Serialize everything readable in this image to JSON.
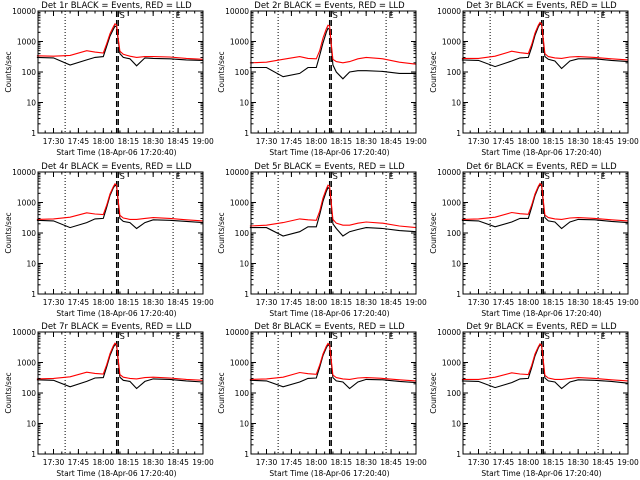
{
  "chart_data": {
    "type": "line",
    "xlabel": "Start Time (18-Apr-06 17:20:40)",
    "ylabel": "Counts/sec",
    "x_tick_labels": [
      "17:30",
      "17:45",
      "18:00",
      "18:15",
      "18:30",
      "18:45",
      "19:00"
    ],
    "y_tick_labels": [
      "1",
      "10",
      "100",
      "1000",
      "10000"
    ],
    "y_scale": "log",
    "ylim": [
      1,
      10000
    ],
    "xlim": [
      "17:20:40",
      "19:00"
    ],
    "grid": false,
    "colors": {
      "events": "#000000",
      "lld": "#ff0000",
      "frame": "#000000"
    },
    "vertical_markers": {
      "dotted": [
        "17:37",
        "18:42",
        "19:00"
      ],
      "dashed": [
        "18:08",
        "18:09"
      ]
    },
    "time_grid": [
      "17:20",
      "17:30",
      "17:40",
      "17:50",
      "17:55",
      "18:00",
      "18:02",
      "18:04",
      "18:06",
      "18:07",
      "18:08",
      "18:09",
      "18:10",
      "18:12",
      "18:16",
      "18:20",
      "18:25",
      "18:30",
      "18:40",
      "18:50",
      "19:00"
    ],
    "panels": [
      {
        "title": "Det 1r BLACK = Events, RED = LLD",
        "marker_labels": [
          "S",
          "E"
        ],
        "series": [
          {
            "name": "Events",
            "values": [
              300,
              290,
              170,
              250,
              300,
              320,
              700,
              1500,
              2500,
              3200,
              3000,
              1000,
              400,
              300,
              270,
              160,
              290,
              280,
              270,
              250,
              240
            ]
          },
          {
            "name": "LLD",
            "values": [
              340,
              330,
              350,
              500,
              450,
              420,
              850,
              1800,
              3000,
              3800,
              3500,
              1200,
              480,
              380,
              330,
              300,
              320,
              320,
              310,
              280,
              260
            ]
          }
        ]
      },
      {
        "title": "Det 2r BLACK = Events, RED = LLD",
        "marker_labels": [
          "S",
          "E"
        ],
        "series": [
          {
            "name": "Events",
            "values": [
              140,
              140,
              70,
              90,
              140,
              140,
              350,
              900,
              2000,
              2700,
              2500,
              700,
              170,
              100,
              60,
              100,
              110,
              110,
              105,
              90,
              90
            ]
          },
          {
            "name": "LLD",
            "values": [
              200,
              210,
              260,
              320,
              280,
              270,
              500,
              1300,
              2600,
              3400,
              3200,
              800,
              260,
              220,
              200,
              220,
              270,
              300,
              270,
              210,
              180
            ]
          }
        ]
      },
      {
        "title": "Det 3r BLACK = Events, RED = LLD",
        "marker_labels": [
          "S",
          "E"
        ],
        "series": [
          {
            "name": "Events",
            "values": [
              250,
              240,
              150,
              230,
              290,
              300,
              650,
              1600,
              3000,
              3800,
              3500,
              1000,
              320,
              260,
              230,
              130,
              230,
              270,
              270,
              240,
              220
            ]
          },
          {
            "name": "LLD",
            "values": [
              280,
              280,
              330,
              480,
              430,
              400,
              800,
              1900,
              3400,
              4200,
              3800,
              1200,
              400,
              320,
              290,
              280,
              310,
              320,
              300,
              270,
              250
            ]
          }
        ]
      },
      {
        "title": "Det 4r BLACK = Events, RED = LLD",
        "marker_labels": [
          "S",
          "E"
        ],
        "series": [
          {
            "name": "Events",
            "values": [
              260,
              250,
              150,
              220,
              290,
              300,
              700,
              1700,
              3000,
              3700,
              3400,
              900,
              300,
              240,
              220,
              140,
              220,
              270,
              260,
              240,
              220
            ]
          },
          {
            "name": "LLD",
            "values": [
              280,
              290,
              330,
              460,
              420,
              400,
              820,
              1900,
              3300,
              4100,
              3700,
              1100,
              380,
              310,
              280,
              280,
              300,
              320,
              300,
              270,
              250
            ]
          }
        ]
      },
      {
        "title": "Det 5r BLACK = Events, RED = LLD",
        "marker_labels": [
          "S",
          "E"
        ],
        "series": [
          {
            "name": "Events",
            "values": [
              150,
              150,
              80,
              110,
              160,
              160,
              400,
              1100,
              2300,
              3100,
              2800,
              800,
              200,
              140,
              80,
              110,
              130,
              150,
              140,
              120,
              110
            ]
          },
          {
            "name": "LLD",
            "values": [
              170,
              180,
              220,
              290,
              270,
              260,
              520,
              1400,
              2800,
              3700,
              3400,
              950,
              280,
              210,
              180,
              180,
              210,
              230,
              210,
              170,
              150
            ]
          }
        ]
      },
      {
        "title": "Det 6r BLACK = Events, RED = LLD",
        "marker_labels": [
          "S",
          "E"
        ],
        "series": [
          {
            "name": "Events",
            "values": [
              260,
              250,
              160,
              230,
              300,
              300,
              700,
              1700,
              3100,
              3800,
              3500,
              950,
              320,
              250,
              230,
              140,
              230,
              280,
              270,
              240,
              220
            ]
          },
          {
            "name": "LLD",
            "values": [
              280,
              290,
              330,
              470,
              430,
              410,
              830,
              1900,
              3400,
              4200,
              3800,
              1150,
              390,
              320,
              290,
              280,
              310,
              320,
              300,
              270,
              250
            ]
          }
        ]
      },
      {
        "title": "Det 7r BLACK = Events, RED = LLD",
        "marker_labels": [
          "S",
          "E"
        ],
        "series": [
          {
            "name": "Events",
            "values": [
              270,
              260,
              160,
              240,
              310,
              320,
              720,
              1700,
              3100,
              3900,
              3600,
              1000,
              330,
              260,
              240,
              140,
              240,
              290,
              280,
              250,
              230
            ]
          },
          {
            "name": "LLD",
            "values": [
              290,
              300,
              340,
              480,
              440,
              420,
              850,
              1950,
              3500,
              4300,
              3900,
              1200,
              400,
              330,
              300,
              290,
              320,
              330,
              310,
              280,
              260
            ]
          }
        ]
      },
      {
        "title": "Det 8r BLACK = Events, RED = LLD",
        "marker_labels": [
          "S",
          "E"
        ],
        "series": [
          {
            "name": "Events",
            "values": [
              260,
              250,
              160,
              230,
              300,
              310,
              700,
              1700,
              3000,
              3800,
              3500,
              950,
              320,
              250,
              230,
              140,
              230,
              280,
              270,
              240,
              220
            ]
          },
          {
            "name": "LLD",
            "values": [
              280,
              290,
              330,
              470,
              430,
              410,
              830,
              1900,
              3400,
              4200,
              3800,
              1150,
              390,
              320,
              290,
              280,
              310,
              320,
              300,
              270,
              250
            ]
          }
        ]
      },
      {
        "title": "Det 9r BLACK = Events, RED = LLD",
        "marker_labels": [
          "S",
          "E"
        ],
        "series": [
          {
            "name": "Events",
            "values": [
              250,
              240,
              150,
              220,
              290,
              300,
              680,
              1650,
              3000,
              3800,
              3500,
              950,
              310,
              250,
              230,
              140,
              230,
              270,
              260,
              240,
              210
            ]
          },
          {
            "name": "LLD",
            "values": [
              280,
              280,
              330,
              460,
              420,
              400,
              810,
              1900,
              3300,
              4100,
              3700,
              1150,
              380,
              310,
              280,
              280,
              300,
              320,
              300,
              270,
              250
            ]
          }
        ]
      }
    ]
  }
}
